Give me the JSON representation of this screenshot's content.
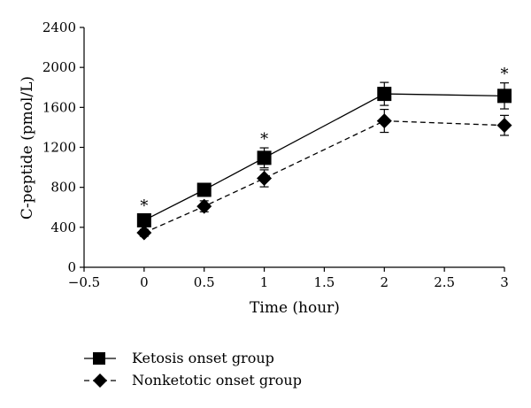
{
  "chart_data": {
    "type": "line",
    "title": "",
    "xlabel": "Time (hour)",
    "ylabel": "C-peptide (pmol/L)",
    "xlim": [
      -0.5,
      3
    ],
    "ylim": [
      0,
      2400
    ],
    "xticks": [
      -0.5,
      0,
      0.5,
      1,
      1.5,
      2,
      2.5,
      3
    ],
    "xtick_labels": [
      "−0.5",
      "0",
      "0.5",
      "1",
      "1.5",
      "2",
      "2.5",
      "3"
    ],
    "yticks": [
      0,
      400,
      800,
      1200,
      1600,
      2000,
      2400
    ],
    "ytick_labels": [
      "0",
      "400",
      "800",
      "1200",
      "1600",
      "2000",
      "2400"
    ],
    "grid": false,
    "legend_position": "bottom-left, below plot",
    "series": [
      {
        "name": "Ketosis onset group",
        "marker": "square",
        "line_style": "solid",
        "color": "#000000",
        "x": [
          0,
          0.5,
          1,
          2,
          3
        ],
        "y": [
          470,
          775,
          1095,
          1735,
          1715
        ],
        "error": [
          55,
          65,
          100,
          115,
          130
        ]
      },
      {
        "name": "Nonketotic onset group",
        "marker": "diamond",
        "line_style": "dashed",
        "color": "#000000",
        "x": [
          0,
          0.5,
          1,
          2,
          3
        ],
        "y": [
          345,
          610,
          890,
          1465,
          1420
        ],
        "error": [
          35,
          55,
          85,
          115,
          100
        ]
      }
    ],
    "annotations": [
      {
        "text": "*",
        "x": 0,
        "y": 470
      },
      {
        "text": "*",
        "x": 1,
        "y": 1095
      },
      {
        "text": "*",
        "x": 3,
        "y": 1715
      }
    ]
  }
}
